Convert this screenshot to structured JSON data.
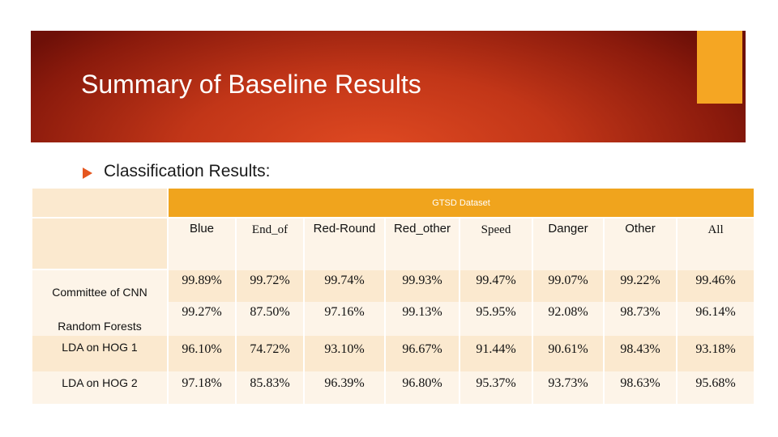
{
  "slide": {
    "title": "Summary of Baseline Results"
  },
  "bullet": {
    "text": "Classification Results:"
  },
  "colors": {
    "banner_red": "#c23618",
    "accent_orange": "#f5a623",
    "table_header": "#f0a41d",
    "table_light": "#fbe9cf",
    "bullet": "#e5561f"
  },
  "table": {
    "dataset_header": "GTSD Dataset",
    "columns": [
      "Blue",
      "End_of",
      "Red-Round",
      "Red_other",
      "Speed",
      "Danger",
      "Other",
      "All"
    ],
    "rows": [
      {
        "label": "Committee of CNN",
        "values": [
          "99.89%",
          "99.72%",
          "99.74%",
          "99.93%",
          "99.47%",
          "99.07%",
          "99.22%",
          "99.46%"
        ]
      },
      {
        "label": "Random Forests",
        "values": [
          "99.27%",
          "87.50%",
          "97.16%",
          "99.13%",
          "95.95%",
          "92.08%",
          "98.73%",
          "96.14%"
        ]
      },
      {
        "label": "LDA on HOG 1",
        "values": [
          "96.10%",
          "74.72%",
          "93.10%",
          "96.67%",
          "91.44%",
          "90.61%",
          "98.43%",
          "93.18%"
        ]
      },
      {
        "label": "LDA on HOG 2",
        "values": [
          "97.18%",
          "85.83%",
          "96.39%",
          "96.80%",
          "95.37%",
          "93.73%",
          "98.63%",
          "95.68%"
        ]
      }
    ]
  }
}
